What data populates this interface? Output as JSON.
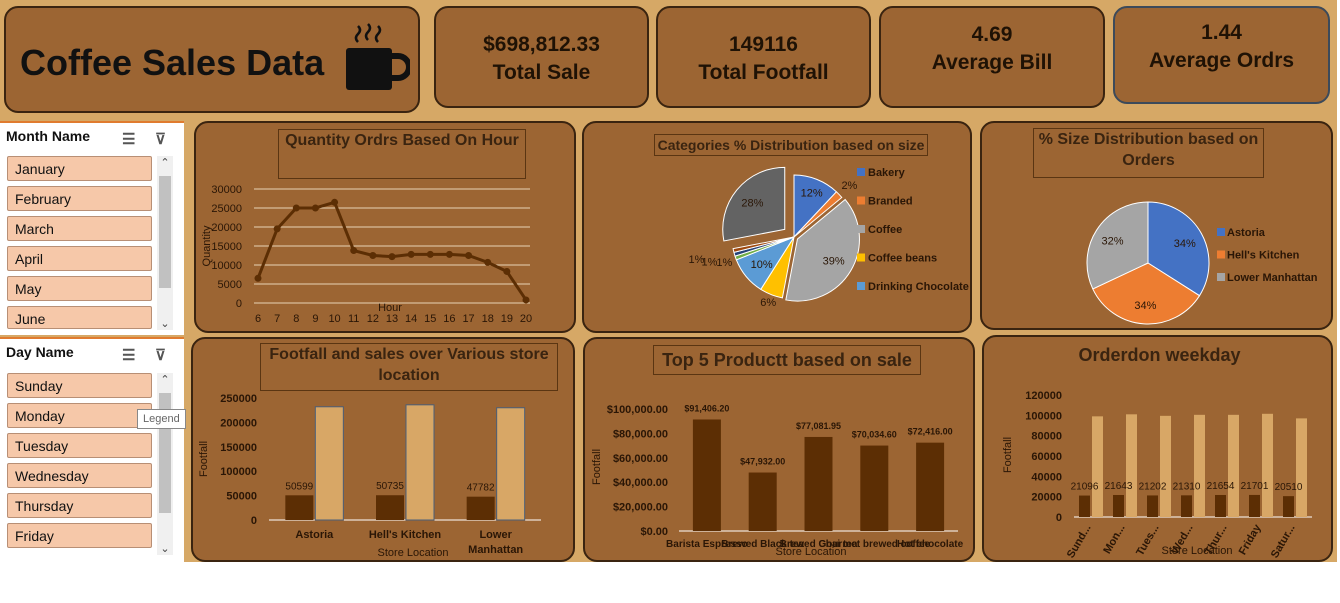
{
  "title": "Coffee Sales Data",
  "kpis": [
    {
      "value": "$698,812.33",
      "label": "Total Sale"
    },
    {
      "value": "149116",
      "label": "Total Footfall"
    },
    {
      "value": "4.69",
      "label": "Average Bill"
    },
    {
      "value": "1.44",
      "label": "Average Ordrs"
    }
  ],
  "month_slicer": {
    "header": "Month Name",
    "items": [
      "January",
      "February",
      "March",
      "April",
      "May",
      "June"
    ]
  },
  "day_slicer": {
    "header": "Day Name",
    "items": [
      "Sunday",
      "Monday",
      "Tuesday",
      "Wednesday",
      "Thursday",
      "Friday"
    ]
  },
  "tooltip": "Legend",
  "colors": {
    "background": "#d6a866",
    "panel": "#9c6533",
    "dark_series": "#5c2e04",
    "light_series": "#d8a766",
    "line": "#5c2e04"
  },
  "chart_data": [
    {
      "type": "line",
      "title": "Quantity Ordrs Based On Hour",
      "xlabel": "Hour",
      "ylabel": "Quantity",
      "x": [
        6,
        7,
        8,
        9,
        10,
        11,
        12,
        13,
        14,
        15,
        16,
        17,
        18,
        19,
        20
      ],
      "values": [
        6500,
        19500,
        25000,
        25000,
        26500,
        13800,
        12500,
        12200,
        12800,
        12800,
        12800,
        12500,
        10700,
        8300,
        800
      ],
      "ylim": [
        0,
        30000
      ],
      "yticks": [
        "0",
        "5000",
        "10000",
        "15000",
        "20000",
        "25000",
        "30000"
      ],
      "grid": true
    },
    {
      "type": "pie",
      "title": "Categories % Distribution based on size",
      "legend": [
        "Bakery",
        "Branded",
        "Coffee",
        "Coffee beans",
        "Drinking Chocolate"
      ],
      "legend_colors": [
        "#4472c4",
        "#ed7d31",
        "#a5a5a5",
        "#ffc000",
        "#5b9bd5"
      ],
      "slices": [
        {
          "label": "12%",
          "value": 12,
          "color": "#4472c4"
        },
        {
          "label": "2%",
          "value": 2,
          "color": "#ed7d31"
        },
        {
          "label": "39%",
          "value": 39,
          "color": "#a5a5a5"
        },
        {
          "label": "6%",
          "value": 6,
          "color": "#ffc000"
        },
        {
          "label": "10%",
          "value": 10,
          "color": "#5b9bd5"
        },
        {
          "label": "1%",
          "value": 1,
          "color": "#70ad47"
        },
        {
          "label": "1%",
          "value": 1,
          "color": "#264478"
        },
        {
          "label": "1%",
          "value": 1,
          "color": "#9e480e"
        },
        {
          "label": "28%",
          "value": 28,
          "color": "#636363"
        }
      ]
    },
    {
      "type": "pie",
      "title": "% Size Distribution based on Orders",
      "legend": [
        "Astoria",
        "Hell's Kitchen",
        "Lower Manhattan"
      ],
      "slices": [
        {
          "label": "34%",
          "value": 34,
          "color": "#4472c4"
        },
        {
          "label": "34%",
          "value": 34,
          "color": "#ed7d31"
        },
        {
          "label": "32%",
          "value": 32,
          "color": "#a5a5a5"
        }
      ]
    },
    {
      "type": "bar",
      "title": "Footfall and  sales over Various store location",
      "xlabel": "Store Location",
      "ylabel": "Footfall",
      "categories": [
        "Astoria",
        "Hell's Kitchen",
        "Lower Manhattan"
      ],
      "series": [
        {
          "values": [
            50599,
            50735,
            47782
          ],
          "labels": [
            "50599",
            "50735",
            "47782"
          ]
        },
        {
          "values": [
            232000,
            236000,
            230000
          ]
        }
      ],
      "ylim": [
        0,
        250000
      ],
      "yticks": [
        "0",
        "50000",
        "100000",
        "150000",
        "200000",
        "250000"
      ]
    },
    {
      "type": "bar",
      "title": "Top 5 Productt based on sale",
      "xlabel": "Store Location",
      "ylabel": "Footfall",
      "categories": [
        "Barista Espresso",
        "Brewed Black tea",
        "Brewed Chai tea",
        "Gourmet brewed coffee",
        "Hot chocolate"
      ],
      "values": [
        91406.2,
        47932.0,
        77081.95,
        70034.6,
        72416.0
      ],
      "labels": [
        "$91,406.20",
        "$47,932.00",
        "$77,081.95",
        "$70,034.60",
        "$72,416.00"
      ],
      "ylim": [
        0,
        100000
      ],
      "yticks": [
        "$0.00",
        "$20,000.00",
        "$40,000.00",
        "$60,000.00",
        "$80,000.00",
        "$100,000.00"
      ]
    },
    {
      "type": "bar",
      "title": "Orderdon weekday",
      "xlabel": "Store Location",
      "ylabel": "Footfall",
      "categories": [
        "Sund...",
        "Mon...",
        "Tues...",
        "Wed...",
        "Thur...",
        "Friday",
        "Satur..."
      ],
      "series": [
        {
          "values": [
            21096,
            21643,
            21202,
            21310,
            21654,
            21701,
            20510
          ],
          "labels": [
            "21096",
            "21643",
            "21202",
            "21310",
            "21654",
            "21701",
            "20510"
          ]
        },
        {
          "values": [
            99000,
            101000,
            99500,
            100500,
            100500,
            101500,
            97000
          ]
        }
      ],
      "ylim": [
        0,
        120000
      ],
      "yticks": [
        "0",
        "20000",
        "40000",
        "60000",
        "80000",
        "100000",
        "120000"
      ]
    }
  ]
}
